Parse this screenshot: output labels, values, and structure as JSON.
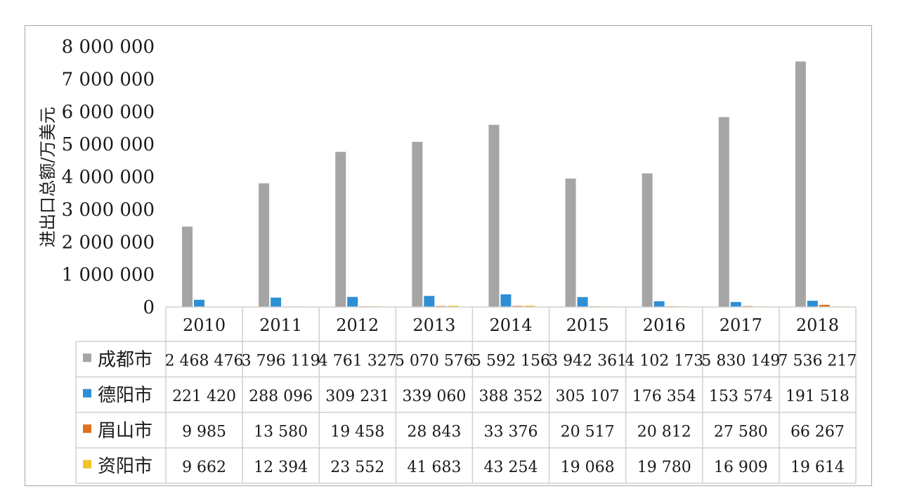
{
  "chart_data": {
    "type": "bar",
    "ylabel": "进出口总额/万美元",
    "ylim": [
      0,
      8000000
    ],
    "y_ticks": [
      "0",
      "1 000 000",
      "2 000 000",
      "3 000 000",
      "4 000 000",
      "5 000 000",
      "6 000 000",
      "7 000 000",
      "8 000 000"
    ],
    "categories": [
      "2010",
      "2011",
      "2012",
      "2013",
      "2014",
      "2015",
      "2016",
      "2017",
      "2018"
    ],
    "series": [
      {
        "name": "成都市",
        "color": "#a5a5a5",
        "values": [
          2468476,
          3796119,
          4761327,
          5070576,
          5592156,
          3942361,
          4102173,
          5830149,
          7536217
        ],
        "labels": [
          "2 468 476",
          "3 796 119",
          "4 761 327",
          "5 070 576",
          "5 592 156",
          "3 942 361",
          "4 102 173",
          "5 830 149",
          "7 536 217"
        ]
      },
      {
        "name": "德阳市",
        "color": "#2e8fd6",
        "values": [
          221420,
          288096,
          309231,
          339060,
          388352,
          305107,
          176354,
          153574,
          191518
        ],
        "labels": [
          "221 420",
          "288 096",
          "309 231",
          "339 060",
          "388 352",
          "305 107",
          "176 354",
          "153 574",
          "191 518"
        ]
      },
      {
        "name": "眉山市",
        "color": "#e0711f",
        "values": [
          9985,
          13580,
          19458,
          28843,
          33376,
          20517,
          20812,
          27580,
          66267
        ],
        "labels": [
          "9 985",
          "13 580",
          "19 458",
          "28 843",
          "33 376",
          "20 517",
          "20 812",
          "27 580",
          "66 267"
        ]
      },
      {
        "name": "资阳市",
        "color": "#f2c22e",
        "values": [
          9662,
          12394,
          23552,
          41683,
          43254,
          19068,
          19780,
          16909,
          19614
        ],
        "labels": [
          "9 662",
          "12 394",
          "23 552",
          "41 683",
          "43 254",
          "19 068",
          "19 780",
          "16 909",
          "19 614"
        ]
      }
    ],
    "grid": false,
    "legend": "data-table"
  }
}
